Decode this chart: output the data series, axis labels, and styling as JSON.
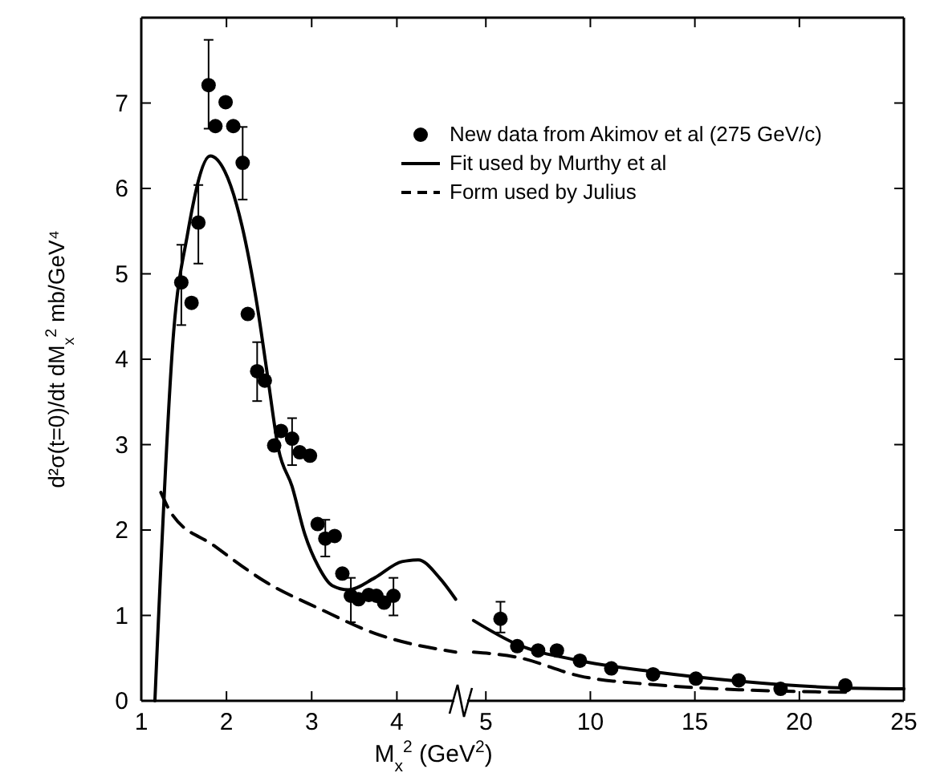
{
  "chart_data": [
    {
      "type": "scatter",
      "ylabel": "d²σ(t=0)/dt dM$_{x}$$^{2}$   mb/GeV⁴",
      "xlabel": "M$_{x}$$^{2}$ (GeV$^{2}$)",
      "xlim": [
        1,
        4.75
      ],
      "xticks": [
        1,
        2,
        3,
        4
      ],
      "ylim": [
        0,
        8
      ],
      "yticks": [
        0,
        1,
        2,
        3,
        4,
        5,
        6,
        7
      ],
      "legend": "top right",
      "series": [
        {
          "name": "New data from Akimov et al (275 GeV/c)",
          "marker": "circle",
          "color": "#000000",
          "x": [
            1.47,
            1.59,
            1.67,
            1.79,
            1.87,
            1.99,
            2.08,
            2.19,
            2.25,
            2.36,
            2.45,
            2.56,
            2.64,
            2.77,
            2.86,
            2.98,
            3.07,
            3.16,
            3.27,
            3.36,
            3.46,
            3.55,
            3.67,
            3.76,
            3.85,
            3.96
          ],
          "values": [
            4.9,
            4.66,
            5.6,
            7.21,
            6.73,
            7.01,
            6.73,
            6.3,
            4.53,
            3.86,
            3.75,
            2.99,
            3.16,
            3.07,
            2.91,
            2.87,
            2.07,
            1.9,
            1.93,
            1.49,
            1.23,
            1.19,
            1.24,
            1.23,
            1.15,
            1.23
          ],
          "errors": [
            [
              4.4,
              5.34
            ],
            null,
            [
              5.12,
              6.04
            ],
            [
              6.7,
              7.74
            ],
            null,
            null,
            null,
            [
              5.87,
              6.72
            ],
            null,
            [
              3.51,
              4.2
            ],
            null,
            null,
            null,
            [
              2.76,
              3.31
            ],
            null,
            null,
            null,
            [
              1.69,
              2.12
            ],
            null,
            null,
            [
              0.92,
              1.44
            ],
            null,
            null,
            null,
            null,
            [
              1.0,
              1.44
            ]
          ]
        },
        {
          "name": "Fit used by Murthy et al",
          "type": "line",
          "line_style": "solid",
          "color": "#000000",
          "x": [
            1.16,
            1.38,
            1.54,
            1.81,
            1.98,
            2.18,
            2.36,
            2.48,
            2.61,
            2.77,
            2.92,
            3.08,
            3.24,
            3.43,
            3.74,
            4.06,
            4.25,
            4.5,
            4.69
          ],
          "values": [
            0,
            4.32,
            5.45,
            6.38,
            6.2,
            5.57,
            4.63,
            3.82,
            2.95,
            2.51,
            1.95,
            1.57,
            1.35,
            1.3,
            1.44,
            1.63,
            1.65,
            1.44,
            1.19
          ]
        },
        {
          "name": "Form used by Julius",
          "type": "line",
          "line_style": "dashed",
          "color": "#000000",
          "x": [
            1.23,
            1.35,
            1.85,
            2.48,
            3.11,
            3.74,
            4.69
          ],
          "values": [
            2.44,
            2.2,
            1.82,
            1.38,
            1.07,
            0.79,
            0.57
          ]
        }
      ]
    },
    {
      "type": "scatter",
      "xlim": [
        3.8,
        25
      ],
      "xticks": [
        5,
        10,
        15,
        20,
        25
      ],
      "ylim": [
        0,
        8
      ],
      "yticks": [
        0,
        1,
        2,
        3,
        4,
        5,
        6,
        7
      ],
      "tick_labels": "x",
      "series": [
        {
          "marker": "circle",
          "color": "#000000",
          "x": [
            5.7,
            6.5,
            7.5,
            8.4,
            9.5,
            11.0,
            13.0,
            15.05,
            17.1,
            19.1,
            22.2
          ],
          "values": [
            0.96,
            0.64,
            0.59,
            0.59,
            0.47,
            0.38,
            0.31,
            0.26,
            0.24,
            0.14,
            0.18
          ],
          "errors": [
            [
              0.8,
              1.16
            ],
            null,
            null,
            null,
            null,
            null,
            null,
            null,
            null,
            null,
            null
          ]
        },
        {
          "type": "line",
          "line_style": "solid",
          "color": "#000000",
          "x": [
            4.41,
            6.5,
            9.5,
            13,
            17.1,
            22.2,
            25
          ],
          "values": [
            0.94,
            0.66,
            0.47,
            0.34,
            0.23,
            0.15,
            0.14
          ]
        },
        {
          "type": "line",
          "line_style": "dashed",
          "color": "#000000",
          "x": [
            4.41,
            6.5,
            9.5,
            13,
            17.1,
            22.2
          ],
          "values": [
            0.57,
            0.51,
            0.29,
            0.19,
            0.13,
            0.1
          ]
        }
      ]
    }
  ]
}
